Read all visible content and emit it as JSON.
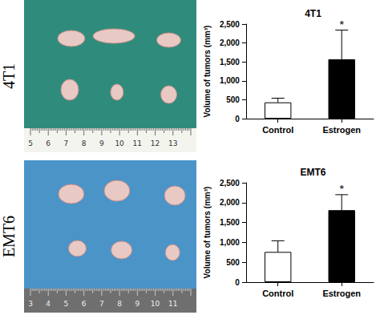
{
  "chart_data": [
    {
      "type": "bar",
      "title": "4T1",
      "categories": [
        "Control",
        "Estrogen"
      ],
      "values": [
        430,
        1570
      ],
      "errors": [
        110,
        770
      ],
      "colors": [
        "#ffffff",
        "#000000"
      ],
      "ylabel": "Volume of tumors (mm³)",
      "ylim": [
        0,
        2500
      ],
      "yticks": [
        0,
        500,
        1000,
        1500,
        2000,
        2500
      ],
      "grid": false,
      "annotations": [
        {
          "category": "Estrogen",
          "text": "*"
        }
      ]
    },
    {
      "type": "bar",
      "title": "EMT6",
      "categories": [
        "Control",
        "Estrogen"
      ],
      "values": [
        760,
        1810
      ],
      "errors": [
        280,
        390
      ],
      "colors": [
        "#ffffff",
        "#000000"
      ],
      "ylabel": "Volume of tumors (mm³)",
      "ylim": [
        0,
        2500
      ],
      "yticks": [
        0,
        500,
        1000,
        1500,
        2000,
        2500
      ],
      "grid": false,
      "annotations": [
        {
          "category": "Estrogen",
          "text": "*"
        }
      ]
    }
  ],
  "panels": [
    {
      "label": "4T1",
      "ruler_numbers": [
        5,
        6,
        7,
        8,
        9,
        10,
        11,
        12,
        13
      ]
    },
    {
      "label": "EMT6",
      "ruler_numbers": [
        3,
        4,
        5,
        6,
        7,
        8,
        9,
        10,
        11
      ]
    }
  ]
}
